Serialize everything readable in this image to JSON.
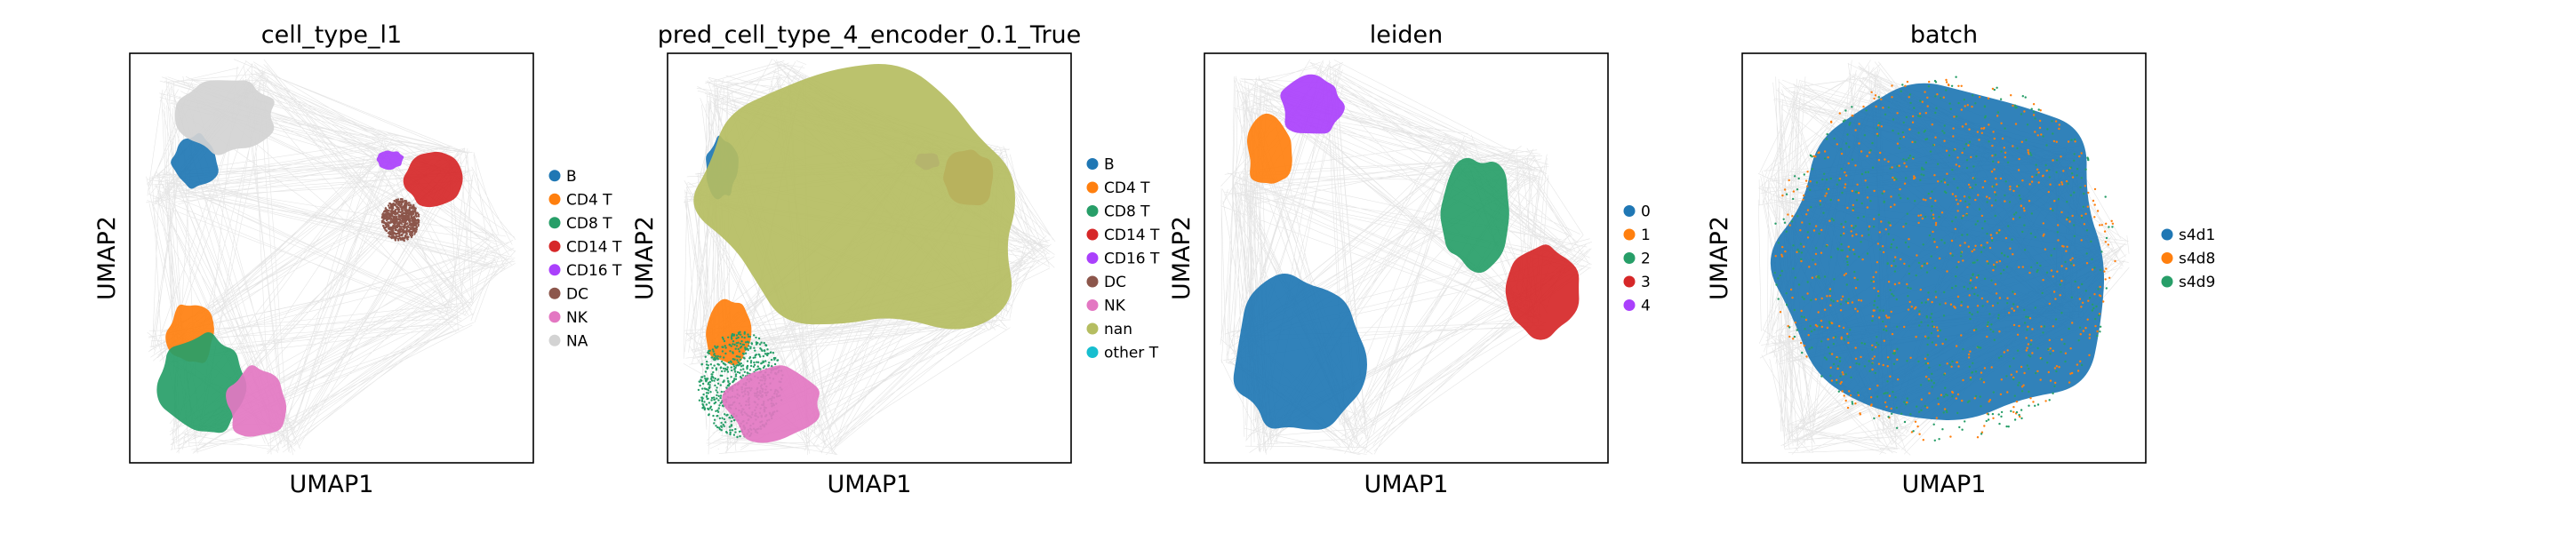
{
  "chart_data": [
    {
      "type": "scatter",
      "title": "cell_type_l1",
      "xlabel": "UMAP1",
      "ylabel": "UMAP2",
      "grid": false,
      "legend_position": "right",
      "series": [
        {
          "name": "B",
          "color": "#1f77b4",
          "shape": "blob",
          "x": [
            2.2,
            4.8
          ],
          "y": [
            12.9,
            15.6
          ]
        },
        {
          "name": "CD4 T",
          "color": "#ff7f0e",
          "shape": "blob",
          "x": [
            2.0,
            4.6
          ],
          "y": [
            4.6,
            7.7
          ]
        },
        {
          "name": "CD8 T",
          "color": "#279e68",
          "shape": "blob",
          "x": [
            1.6,
            6.2
          ],
          "y": [
            1.2,
            6.2
          ]
        },
        {
          "name": "CD14 T",
          "color": "#d62728",
          "shape": "blob",
          "x": [
            14.7,
            17.7
          ],
          "y": [
            12.1,
            14.8
          ]
        },
        {
          "name": "CD16 T",
          "color": "#aa40fc",
          "shape": "blob",
          "x": [
            13.2,
            14.7
          ],
          "y": [
            13.9,
            14.8
          ]
        },
        {
          "name": "DC",
          "color": "#8c564b",
          "shape": "scatter",
          "x": [
            13.5,
            15.5
          ],
          "y": [
            10.5,
            12.5
          ]
        },
        {
          "name": "NK",
          "color": "#e377c2",
          "shape": "blob",
          "x": [
            5.2,
            8.4
          ],
          "y": [
            1.0,
            4.6
          ]
        },
        {
          "name": "NA",
          "color": "#d3d3d3",
          "shape": "blob",
          "x": [
            2.5,
            7.8
          ],
          "y": [
            14.6,
            18.4
          ]
        }
      ]
    },
    {
      "type": "scatter",
      "title": "pred_cell_type_4_encoder_0.1_True",
      "xlabel": "UMAP1",
      "ylabel": "UMAP2",
      "grid": false,
      "legend_position": "right",
      "series": [
        {
          "name": "B",
          "color": "#1f77b4",
          "shape": "blob",
          "x": [
            2.0,
            3.8
          ],
          "y": [
            12.5,
            15.5
          ]
        },
        {
          "name": "CD4 T",
          "color": "#ff7f0e",
          "shape": "blob",
          "x": [
            2.0,
            4.6
          ],
          "y": [
            4.6,
            7.7
          ]
        },
        {
          "name": "CD8 T",
          "color": "#279e68",
          "shape": "scatter",
          "x": [
            1.6,
            6.2
          ],
          "y": [
            1.2,
            6.2
          ]
        },
        {
          "name": "CD14 T",
          "color": "#d62728",
          "shape": "blob",
          "x": [
            14.7,
            17.5
          ],
          "y": [
            12.1,
            14.8
          ]
        },
        {
          "name": "CD16 T",
          "color": "#aa40fc",
          "shape": "blob",
          "x": [
            13.2,
            14.6
          ],
          "y": [
            13.9,
            14.7
          ]
        },
        {
          "name": "DC",
          "color": "#8c564b",
          "shape": "none",
          "x": [],
          "y": []
        },
        {
          "name": "NK",
          "color": "#e377c2",
          "shape": "blob",
          "x": [
            2.8,
            8.4
          ],
          "y": [
            1.0,
            4.6
          ]
        },
        {
          "name": "nan",
          "color": "#b5bd61",
          "shape": "blob",
          "x": [
            1.6,
            20.0
          ],
          "y": [
            5.8,
            18.4
          ]
        },
        {
          "name": "other T",
          "color": "#17becf",
          "shape": "none",
          "x": [],
          "y": []
        }
      ]
    },
    {
      "type": "scatter",
      "title": "leiden",
      "xlabel": "UMAP1",
      "ylabel": "UMAP2",
      "grid": false,
      "legend_position": "right",
      "series": [
        {
          "name": "0",
          "color": "#1f77b4",
          "shape": "blob",
          "x": [
            1.6,
            8.4
          ],
          "y": [
            1.0,
            9.0
          ]
        },
        {
          "name": "1",
          "color": "#ff7f0e",
          "shape": "blob",
          "x": [
            2.2,
            4.8
          ],
          "y": [
            13.0,
            16.5
          ]
        },
        {
          "name": "2",
          "color": "#279e68",
          "shape": "blob",
          "x": [
            12.5,
            16.5
          ],
          "y": [
            9.0,
            14.6
          ]
        },
        {
          "name": "3",
          "color": "#d62728",
          "shape": "blob",
          "x": [
            16.0,
            20.0
          ],
          "y": [
            6.0,
            10.5
          ]
        },
        {
          "name": "4",
          "color": "#aa40fc",
          "shape": "blob",
          "x": [
            4.0,
            7.5
          ],
          "y": [
            15.5,
            18.4
          ]
        }
      ]
    },
    {
      "type": "scatter",
      "title": "batch",
      "xlabel": "UMAP1",
      "ylabel": "UMAP2",
      "grid": false,
      "legend_position": "right",
      "series": [
        {
          "name": "s4d1",
          "color": "#1f77b4",
          "shape": "blob",
          "x": [
            1.6,
            20.0
          ],
          "y": [
            1.0,
            18.4
          ]
        },
        {
          "name": "s4d8",
          "color": "#ff7f0e",
          "shape": "scatter",
          "x": [
            1.6,
            20.0
          ],
          "y": [
            1.0,
            18.4
          ]
        },
        {
          "name": "s4d9",
          "color": "#279e68",
          "shape": "scatter",
          "x": [
            1.6,
            20.0
          ],
          "y": [
            1.0,
            18.4
          ]
        }
      ]
    }
  ]
}
